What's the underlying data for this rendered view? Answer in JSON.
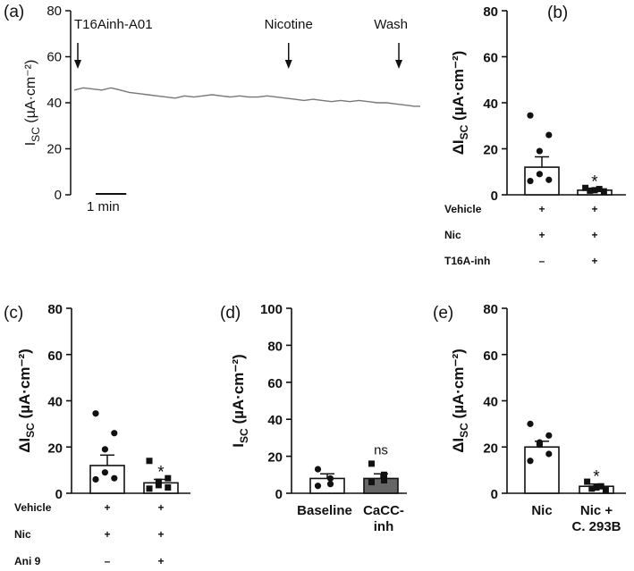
{
  "chart_data": [
    {
      "panel": "(a)",
      "type": "line",
      "ylabel": "I_SC (µA·cm⁻²)",
      "ylabel_main": "I",
      "ylabel_sub": "SC",
      "ylabel_unit": " (µA·cm⁻²)",
      "ylim": [
        0,
        80
      ],
      "yticks": [
        0,
        20,
        40,
        60,
        80
      ],
      "scalebar_label": "1 min",
      "duration_min": 11.3,
      "events": [
        {
          "label": "T16Ainh-A01",
          "t": 0.0
        },
        {
          "label": "Nicotine",
          "t": 7.0
        },
        {
          "label": "Wash",
          "t": 10.6
        }
      ],
      "trace": [
        [
          0,
          45.5
        ],
        [
          0.3,
          46.5
        ],
        [
          0.6,
          46
        ],
        [
          0.9,
          45.5
        ],
        [
          1.2,
          46.5
        ],
        [
          1.5,
          45.5
        ],
        [
          1.8,
          44.5
        ],
        [
          2.1,
          44
        ],
        [
          2.4,
          43.5
        ],
        [
          2.7,
          43
        ],
        [
          3.0,
          42.5
        ],
        [
          3.3,
          42
        ],
        [
          3.6,
          43
        ],
        [
          3.9,
          42.5
        ],
        [
          4.2,
          43
        ],
        [
          4.5,
          43.5
        ],
        [
          4.8,
          43
        ],
        [
          5.1,
          42.5
        ],
        [
          5.4,
          43
        ],
        [
          5.7,
          42.5
        ],
        [
          6.0,
          42.5
        ],
        [
          6.3,
          43
        ],
        [
          6.6,
          42.5
        ],
        [
          6.9,
          42
        ],
        [
          7.2,
          41.5
        ],
        [
          7.5,
          41
        ],
        [
          7.8,
          41.5
        ],
        [
          8.1,
          41
        ],
        [
          8.4,
          40.5
        ],
        [
          8.7,
          41
        ],
        [
          9.0,
          40.5
        ],
        [
          9.3,
          41
        ],
        [
          9.6,
          40.5
        ],
        [
          9.9,
          40
        ],
        [
          10.2,
          40
        ],
        [
          10.5,
          39.5
        ],
        [
          10.8,
          39
        ],
        [
          11.1,
          38.5
        ],
        [
          11.3,
          38.5
        ]
      ]
    },
    {
      "panel": "(b)",
      "type": "bar",
      "ylabel": "ΔI_SC (µA·cm⁻²)",
      "ylabel_prefix": "Δ",
      "ylabel_main": "I",
      "ylabel_sub": "SC",
      "ylabel_unit": " (µA·cm⁻²)",
      "ylim": [
        0,
        80
      ],
      "yticks": [
        0,
        20,
        40,
        60,
        80
      ],
      "bars": [
        {
          "mean": 12,
          "sem": 4.5,
          "fill": "#ffffff",
          "points": [
            34.5,
            26,
            19,
            9,
            6.5,
            6
          ],
          "marker": "circle",
          "significance": ""
        },
        {
          "mean": 2,
          "sem": 0.6,
          "fill": "#ffffff",
          "points": [
            3,
            2.5,
            2,
            1.8,
            1.5
          ],
          "marker": "square",
          "significance": "*"
        }
      ],
      "conditions": [
        {
          "name": "Vehicle",
          "signs": [
            "+",
            "+"
          ]
        },
        {
          "name": "Nic",
          "signs": [
            "+",
            "+"
          ]
        },
        {
          "name": "T16A-inh",
          "signs": [
            "–",
            "+"
          ]
        }
      ]
    },
    {
      "panel": "(c)",
      "type": "bar",
      "ylabel": "ΔI_SC (µA·cm⁻²)",
      "ylabel_prefix": "Δ",
      "ylabel_main": "I",
      "ylabel_sub": "SC",
      "ylabel_unit": " (µA·cm⁻²)",
      "ylim": [
        0,
        80
      ],
      "yticks": [
        0,
        20,
        40,
        60,
        80
      ],
      "bars": [
        {
          "mean": 12,
          "sem": 4.5,
          "fill": "#ffffff",
          "points": [
            34.5,
            26,
            19,
            9,
            6.5,
            6
          ],
          "marker": "circle",
          "significance": ""
        },
        {
          "mean": 4.5,
          "sem": 1.5,
          "fill": "#ffffff",
          "points": [
            14,
            6.5,
            5,
            3.5,
            2.5,
            2
          ],
          "marker": "square",
          "significance": "*"
        }
      ],
      "conditions": [
        {
          "name": "Vehicle",
          "signs": [
            "+",
            "+"
          ]
        },
        {
          "name": "Nic",
          "signs": [
            "+",
            "+"
          ]
        },
        {
          "name": "Ani 9",
          "signs": [
            "–",
            "+"
          ]
        }
      ]
    },
    {
      "panel": "(d)",
      "type": "bar",
      "ylabel": "I_SC (µA·cm⁻²)",
      "ylabel_prefix": "",
      "ylabel_main": "I",
      "ylabel_sub": "SC",
      "ylabel_unit": " (µA·cm⁻²)",
      "ylim": [
        0,
        100
      ],
      "yticks": [
        0,
        20,
        40,
        60,
        80,
        100
      ],
      "categories": [
        "Baseline",
        "CaCC-inh"
      ],
      "category_lines": [
        [
          "Baseline"
        ],
        [
          "CaCC-",
          "inh"
        ]
      ],
      "bars": [
        {
          "mean": 8,
          "sem": 2.5,
          "fill": "#ffffff",
          "points": [
            13,
            8,
            5,
            4
          ],
          "marker": "circle",
          "significance": ""
        },
        {
          "mean": 8,
          "sem": 2.5,
          "fill": "#666666",
          "points": [
            16,
            10,
            7,
            6
          ],
          "marker": "square",
          "significance": "ns"
        }
      ]
    },
    {
      "panel": "(e)",
      "type": "bar",
      "ylabel": "ΔI_SC (µA·cm⁻²)",
      "ylabel_prefix": "Δ",
      "ylabel_main": "I",
      "ylabel_sub": "SC",
      "ylabel_unit": " (µA·cm⁻²)",
      "ylim": [
        0,
        80
      ],
      "yticks": [
        0,
        20,
        40,
        60,
        80
      ],
      "categories": [
        "Nic",
        "Nic + C. 293B"
      ],
      "category_lines": [
        [
          "Nic"
        ],
        [
          "Nic +",
          "C. 293B"
        ]
      ],
      "bars": [
        {
          "mean": 20,
          "sem": 2.5,
          "fill": "#ffffff",
          "points": [
            30,
            25,
            22,
            21,
            17,
            14
          ],
          "marker": "circle",
          "significance": ""
        },
        {
          "mean": 3,
          "sem": 1,
          "fill": "#ffffff",
          "points": [
            5,
            3,
            2.5,
            2,
            1.5
          ],
          "marker": "square",
          "significance": "*"
        }
      ]
    }
  ]
}
